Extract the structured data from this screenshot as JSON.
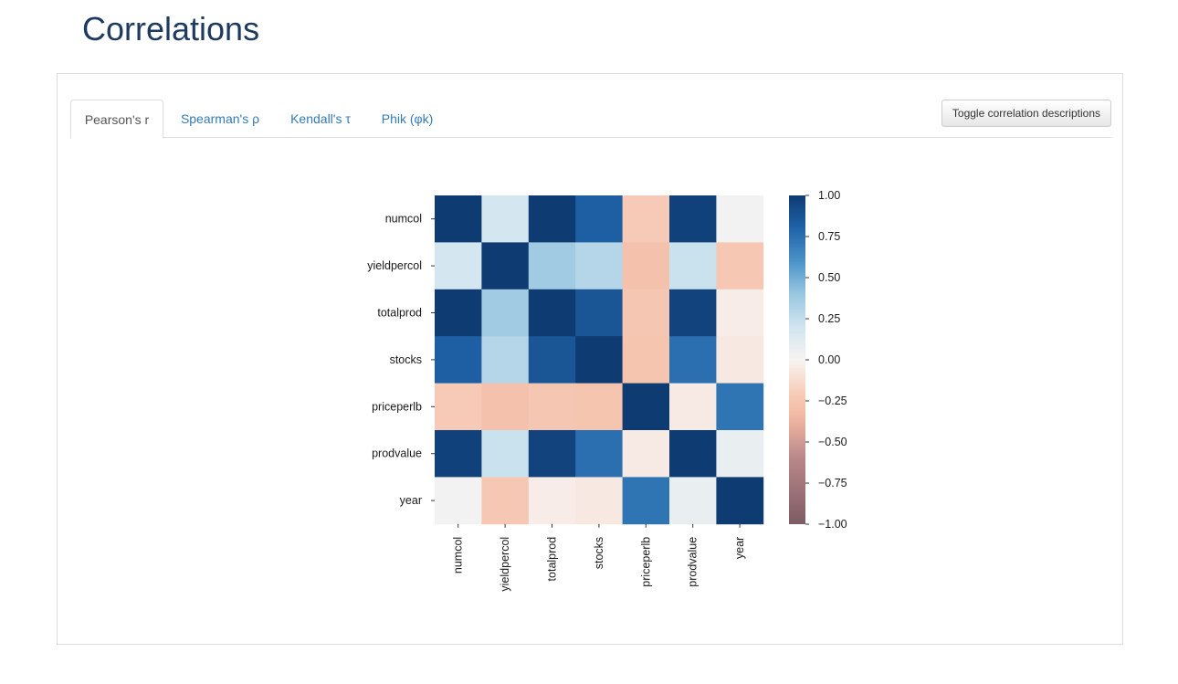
{
  "page": {
    "title": "Correlations"
  },
  "tabs": [
    {
      "label": "Pearson's r",
      "active": true
    },
    {
      "label": "Spearman's ρ",
      "active": false
    },
    {
      "label": "Kendall's τ",
      "active": false
    },
    {
      "label": "Phik (φk)",
      "active": false
    }
  ],
  "toolbar": {
    "toggle_label": "Toggle correlation descriptions"
  },
  "chart_data": {
    "type": "heatmap",
    "variables": [
      "numcol",
      "yieldpercol",
      "totalprod",
      "stocks",
      "priceperlb",
      "prodvalue",
      "year"
    ],
    "matrix": [
      [
        1.0,
        0.18,
        1.0,
        0.82,
        -0.22,
        0.97,
        0.02
      ],
      [
        0.18,
        1.0,
        0.37,
        0.3,
        -0.28,
        0.22,
        -0.24
      ],
      [
        1.0,
        0.37,
        1.0,
        0.87,
        -0.25,
        0.96,
        -0.04
      ],
      [
        0.82,
        0.3,
        0.87,
        1.0,
        -0.26,
        0.75,
        -0.06
      ],
      [
        -0.22,
        -0.28,
        -0.25,
        -0.26,
        1.0,
        -0.05,
        0.73
      ],
      [
        0.97,
        0.22,
        0.96,
        0.75,
        -0.05,
        1.0,
        0.07
      ],
      [
        0.02,
        -0.24,
        -0.04,
        -0.06,
        0.73,
        0.07,
        1.0
      ]
    ],
    "colorbar": {
      "ticks": [
        1.0,
        0.75,
        0.5,
        0.25,
        0.0,
        -0.25,
        -0.5,
        -0.75,
        -1.0
      ],
      "tick_labels": [
        "1.00",
        "0.75",
        "0.50",
        "0.25",
        "0.00",
        "−0.25",
        "−0.50",
        "−0.75",
        "−1.00"
      ],
      "range": [
        -1,
        1
      ]
    },
    "colormap": {
      "stops": [
        {
          "v": -1.0,
          "color": "#7e5b63"
        },
        {
          "v": -0.6,
          "color": "#b9878a"
        },
        {
          "v": -0.35,
          "color": "#f2b8a0"
        },
        {
          "v": -0.2,
          "color": "#f7cdb9"
        },
        {
          "v": 0.0,
          "color": "#f7f4f2"
        },
        {
          "v": 0.2,
          "color": "#d0e4f0"
        },
        {
          "v": 0.4,
          "color": "#98c7e0"
        },
        {
          "v": 0.6,
          "color": "#4b93c8"
        },
        {
          "v": 0.8,
          "color": "#2063a8"
        },
        {
          "v": 1.0,
          "color": "#0e3b72"
        }
      ]
    }
  }
}
